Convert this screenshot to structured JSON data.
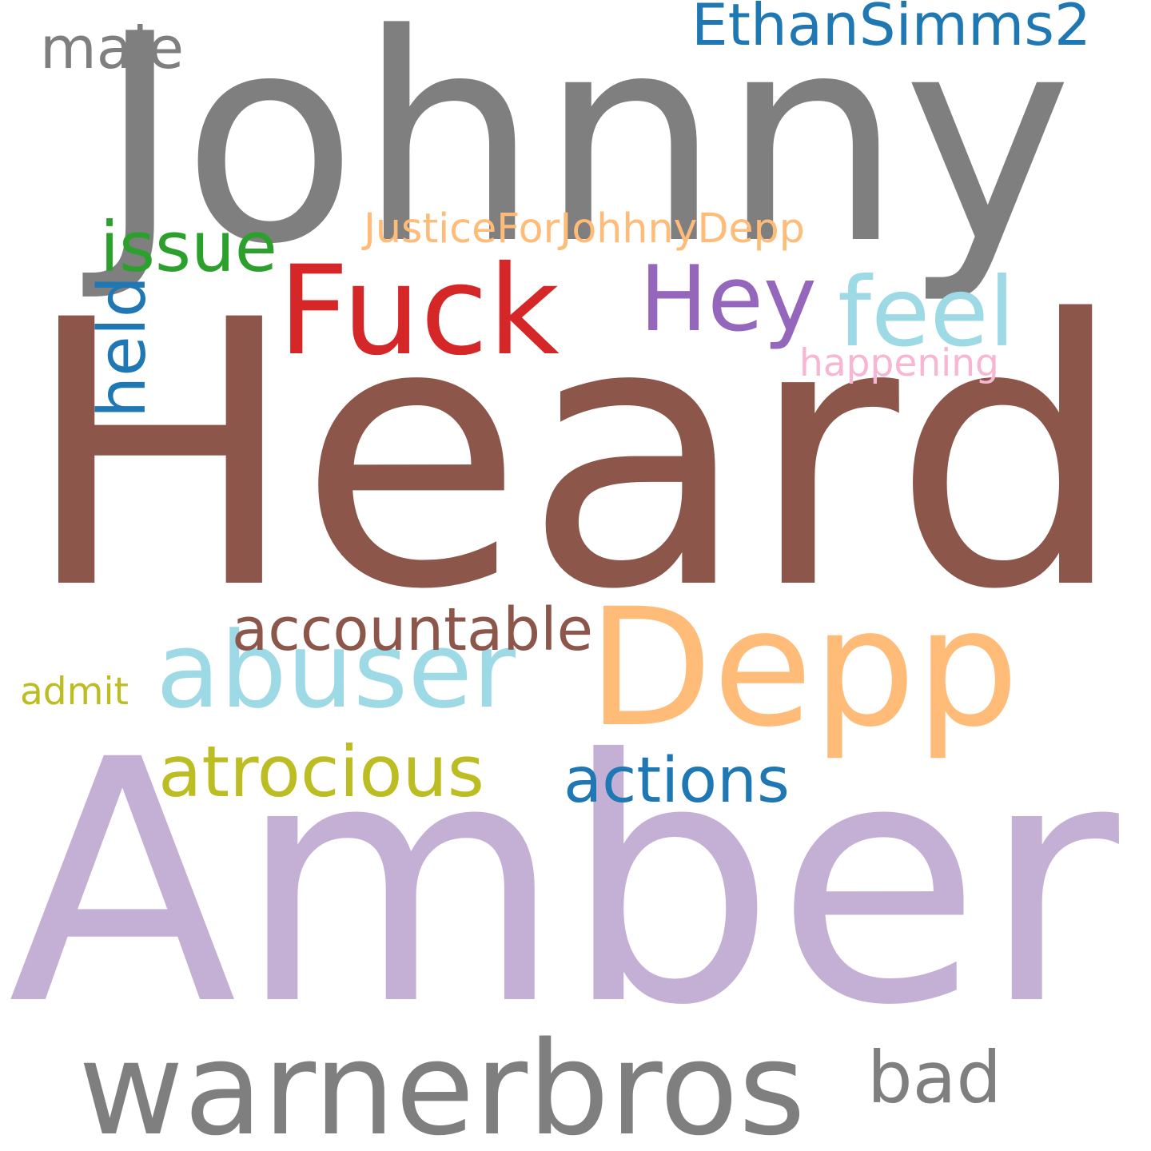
{
  "words": [
    {
      "key": "johnny",
      "text": "Johnny",
      "color": "#7f7f7f"
    },
    {
      "key": "heard",
      "text": "Heard",
      "color": "#8c564b"
    },
    {
      "key": "amber",
      "text": "Amber",
      "color": "#c5b0d5"
    },
    {
      "key": "depp",
      "text": "Depp",
      "color": "#ffbb78"
    },
    {
      "key": "warnerbros",
      "text": "warnerbros",
      "color": "#7f7f7f"
    },
    {
      "key": "fuck",
      "text": "Fuck",
      "color": "#d62728"
    },
    {
      "key": "hey",
      "text": "Hey",
      "color": "#9467bd"
    },
    {
      "key": "abuser",
      "text": "abuser",
      "color": "#9edae5"
    },
    {
      "key": "ethansimms2",
      "text": "EthanSimms2",
      "color": "#1f77b4"
    },
    {
      "key": "feel",
      "text": "feel",
      "color": "#9edae5"
    },
    {
      "key": "issue",
      "text": "issue",
      "color": "#2ca02c"
    },
    {
      "key": "held",
      "text": "held",
      "color": "#1f77b4",
      "vertical": true
    },
    {
      "key": "male",
      "text": "male",
      "color": "#7f7f7f"
    },
    {
      "key": "justiceforjohnnydepp",
      "text": "JusticeForJohhnyDepp",
      "color": "#ffbb78"
    },
    {
      "key": "happening",
      "text": "happening",
      "color": "#f7b6d2"
    },
    {
      "key": "accountable",
      "text": "accountable",
      "color": "#8c564b"
    },
    {
      "key": "atrocious",
      "text": "atrocious",
      "color": "#bcbd22"
    },
    {
      "key": "actions",
      "text": "actions",
      "color": "#1f77b4"
    },
    {
      "key": "admit",
      "text": "admit",
      "color": "#bcbd22"
    },
    {
      "key": "bad",
      "text": "bad",
      "color": "#7f7f7f"
    }
  ]
}
